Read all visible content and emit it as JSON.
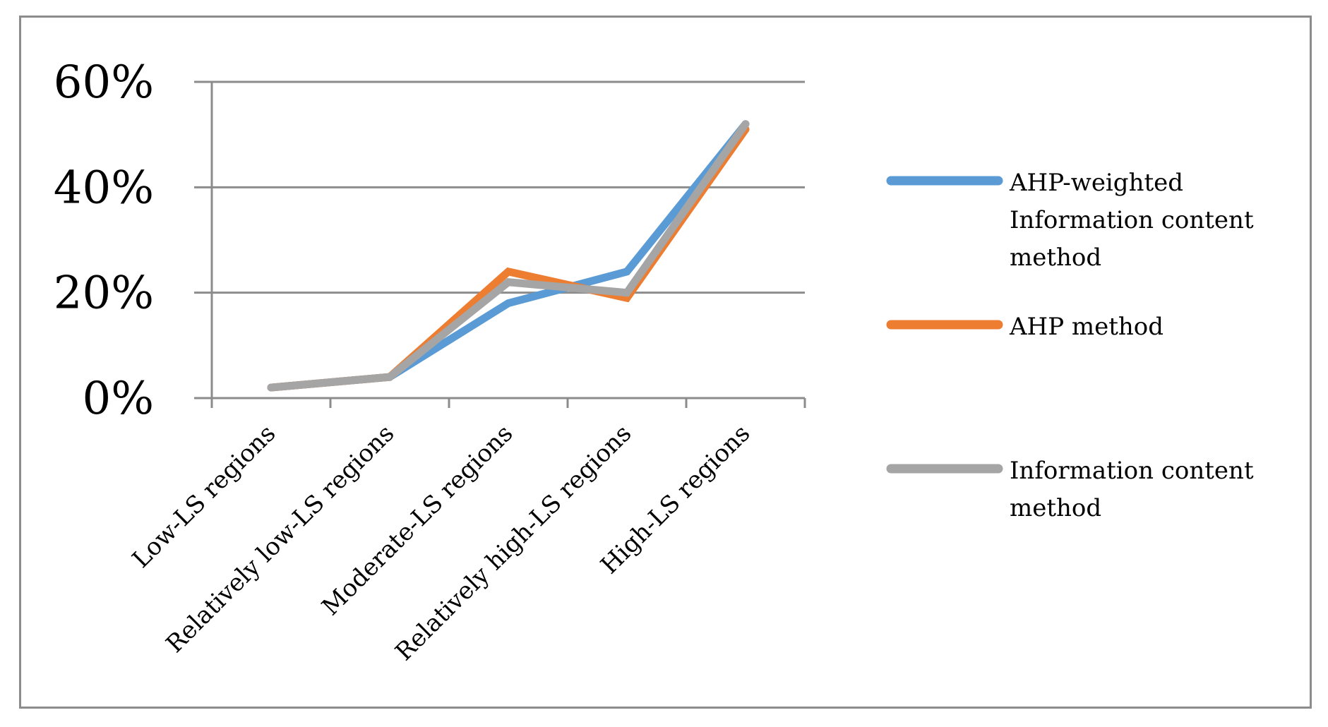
{
  "chart_data": {
    "type": "line",
    "categories": [
      "Low-LS regions",
      "Relatively low-LS regions",
      "Moderate-LS regions",
      "Relatively high-LS regions",
      "High-LS regions"
    ],
    "ylim": [
      0,
      0.6
    ],
    "yticks": [
      0,
      0.2,
      0.4,
      0.6
    ],
    "ytick_labels": [
      "0%",
      "20%",
      "40%",
      "60%"
    ],
    "grid": true,
    "legend_position": "right",
    "series": [
      {
        "name": "AHP-weighted Information content method",
        "legend_lines": [
          "AHP-weighted",
          "Information content",
          "method"
        ],
        "color": "#5b9bd5",
        "values": [
          0.02,
          0.04,
          0.18,
          0.24,
          0.52
        ]
      },
      {
        "name": "AHP method",
        "legend_lines": [
          "AHP method"
        ],
        "color": "#ed7d31",
        "values": [
          0.02,
          0.04,
          0.24,
          0.19,
          0.51
        ]
      },
      {
        "name": "Information content method",
        "legend_lines": [
          "Information content",
          "method"
        ],
        "color": "#a5a5a5",
        "values": [
          0.02,
          0.04,
          0.22,
          0.2,
          0.52
        ]
      }
    ]
  }
}
